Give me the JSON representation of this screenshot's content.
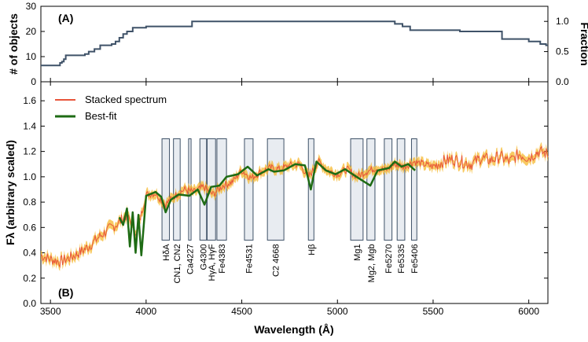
{
  "chart_data": [
    {
      "panel": "(A)",
      "type": "line",
      "step": true,
      "xlim": [
        3450,
        6100
      ],
      "ylim": [
        0,
        30
      ],
      "ylabel": "# of objects",
      "yticks": [
        0,
        10,
        20,
        30
      ],
      "ylabel_right": "Fraction",
      "right_ylim": [
        0,
        1.25
      ],
      "right_yticks": [
        "0.0",
        "0.5",
        "1.0"
      ],
      "color": "#3f5268",
      "series": {
        "name": "# of objects",
        "x": [
          3450,
          3540,
          3550,
          3560,
          3570,
          3580,
          3680,
          3700,
          3730,
          3760,
          3820,
          3840,
          3860,
          3880,
          3900,
          3930,
          4000,
          4240,
          5300,
          5340,
          5380,
          5640,
          5860,
          6000,
          6060,
          6090,
          6100
        ],
        "y": [
          6.5,
          6.5,
          7.5,
          8.0,
          9.0,
          10.5,
          11.0,
          12.0,
          13.0,
          14.5,
          15.0,
          16.0,
          17.5,
          19.0,
          20.0,
          21.5,
          22.0,
          24.0,
          23.0,
          22.0,
          20.5,
          20.0,
          17.0,
          16.0,
          15.0,
          14.5,
          14.5
        ]
      }
    },
    {
      "panel": "(B)",
      "type": "line",
      "xlabel": "Wavelength (Å)",
      "ylabel": "Fλ (arbitrary scaled)",
      "xlim": [
        3450,
        6100
      ],
      "ylim": [
        0,
        1.75
      ],
      "xticks": [
        3500,
        4000,
        4500,
        5000,
        5500,
        6000
      ],
      "yticks": [
        "0.0",
        "0.2",
        "0.4",
        "0.6",
        "0.8",
        "1.0",
        "1.2",
        "1.4",
        "1.6"
      ],
      "legend": {
        "position": "top-left",
        "entries": [
          "Stacked spectrum",
          "Best-fit"
        ]
      },
      "series": [
        {
          "name": "Stacked spectrum",
          "color": "#e8553a",
          "band_color": "#f5b82e",
          "x": [
            3450,
            3500,
            3550,
            3600,
            3650,
            3700,
            3750,
            3800,
            3850,
            3900,
            3950,
            4000,
            4050,
            4100,
            4150,
            4200,
            4250,
            4300,
            4350,
            4400,
            4450,
            4500,
            4550,
            4600,
            4650,
            4700,
            4750,
            4800,
            4850,
            4900,
            4950,
            5000,
            5050,
            5100,
            5150,
            5200,
            5250,
            5300,
            5350,
            5400,
            5450,
            5500,
            5550,
            5600,
            5650,
            5700,
            5750,
            5800,
            5850,
            5900,
            5950,
            6000,
            6050,
            6100
          ],
          "y": [
            0.38,
            0.35,
            0.33,
            0.36,
            0.4,
            0.45,
            0.52,
            0.58,
            0.63,
            0.7,
            0.55,
            0.86,
            0.87,
            0.78,
            0.85,
            0.9,
            0.88,
            0.92,
            0.86,
            0.93,
            0.96,
            1.05,
            0.99,
            1.04,
            1.07,
            1.06,
            1.09,
            1.1,
            1.0,
            1.12,
            1.05,
            1.02,
            1.06,
            1.0,
            1.04,
            1.07,
            1.05,
            1.1,
            1.08,
            1.12,
            1.1,
            1.08,
            1.12,
            1.14,
            1.12,
            1.1,
            1.15,
            1.13,
            1.16,
            1.12,
            1.18,
            1.15,
            1.2,
            1.18
          ]
        },
        {
          "name": "Best-fit",
          "color": "#1e6b14",
          "x": [
            3860,
            3880,
            3900,
            3915,
            3930,
            3945,
            3960,
            3975,
            4000,
            4050,
            4080,
            4102,
            4130,
            4170,
            4226,
            4270,
            4305,
            4340,
            4383,
            4420,
            4480,
            4531,
            4580,
            4640,
            4668,
            4720,
            4780,
            4830,
            4861,
            4890,
            4940,
            4990,
            5040,
            5100,
            5172,
            5210,
            5270,
            5300,
            5335,
            5370,
            5406
          ],
          "y": [
            0.68,
            0.62,
            0.75,
            0.45,
            0.72,
            0.4,
            0.7,
            0.38,
            0.85,
            0.88,
            0.84,
            0.72,
            0.82,
            0.86,
            0.85,
            0.9,
            0.78,
            0.92,
            0.93,
            1.0,
            1.02,
            1.08,
            1.01,
            1.06,
            1.04,
            1.05,
            1.1,
            1.09,
            0.9,
            1.12,
            1.05,
            1.02,
            1.06,
            1.0,
            0.93,
            1.05,
            1.07,
            1.12,
            1.08,
            1.1,
            1.05
          ]
        }
      ],
      "features": [
        {
          "name": "Hδ_A",
          "label": "HδA",
          "x0": 4083,
          "x1": 4122
        },
        {
          "name": "CN1, CN2",
          "label": "CN1, CN2",
          "x0": 4143,
          "x1": 4178
        },
        {
          "name": "Ca4227",
          "label": "Ca4227",
          "x0": 4222,
          "x1": 4235
        },
        {
          "name": "G4300",
          "label": "G4300",
          "x0": 4281,
          "x1": 4316
        },
        {
          "name": "Hγ_A, Hγ_F",
          "label": "HγA, HγF",
          "x0": 4319,
          "x1": 4363
        },
        {
          "name": "Fe4383",
          "label": "Fe4383",
          "x0": 4370,
          "x1": 4420
        },
        {
          "name": "Fe4531",
          "label": "Fe4531",
          "x0": 4514,
          "x1": 4559
        },
        {
          "name": "C2 4668",
          "label": "C2 4668",
          "x0": 4634,
          "x1": 4720
        },
        {
          "name": "Hβ",
          "label": "Hβ",
          "x0": 4848,
          "x1": 4877
        },
        {
          "name": "Mg1",
          "label": "Mg1",
          "x0": 5069,
          "x1": 5134
        },
        {
          "name": "Mg2, Mgb",
          "label": "Mg2, Mgb",
          "x0": 5154,
          "x1": 5196
        },
        {
          "name": "Fe5270",
          "label": "Fe5270",
          "x0": 5245,
          "x1": 5285
        },
        {
          "name": "Fe5335",
          "label": "Fe5335",
          "x0": 5312,
          "x1": 5352
        },
        {
          "name": "Fe5406",
          "label": "Fe5406",
          "x0": 5387,
          "x1": 5415
        }
      ]
    }
  ]
}
